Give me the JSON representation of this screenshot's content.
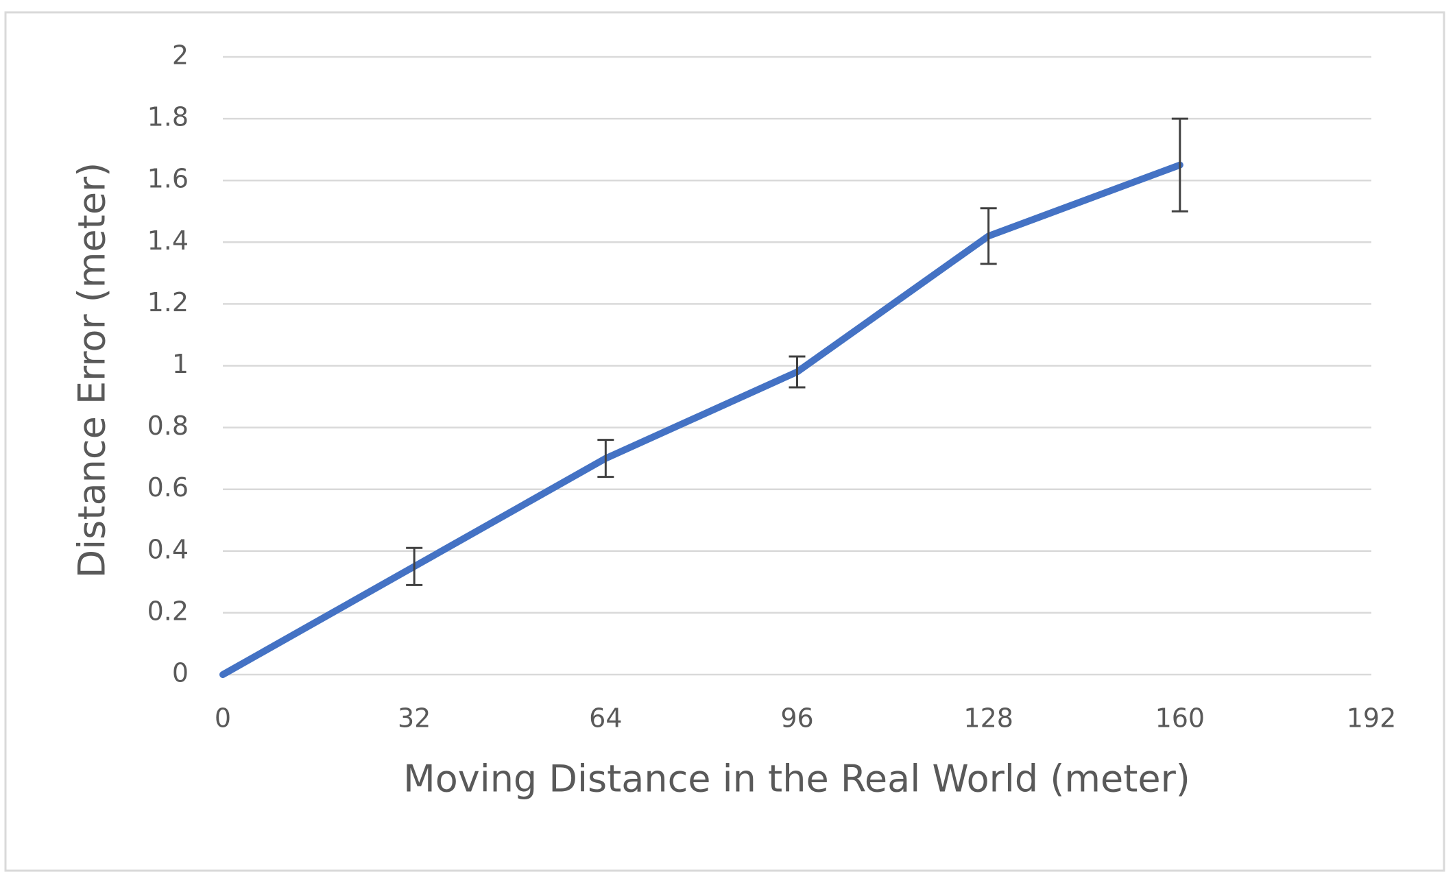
{
  "chart_data": {
    "type": "line",
    "x_label": "Moving Distance in the Real World (meter)",
    "y_label": "Distance Error (meter)",
    "x": [
      0,
      32,
      64,
      96,
      128,
      160
    ],
    "series": [
      {
        "color": "#4472c4",
        "values": [
          0,
          0.35,
          0.7,
          0.98,
          1.42,
          1.65
        ],
        "errors": [
          null,
          0.06,
          0.06,
          0.05,
          0.09,
          0.15
        ]
      }
    ],
    "xlim": [
      0,
      192
    ],
    "xticks": [
      0,
      32,
      64,
      96,
      128,
      160,
      192
    ],
    "ylim": [
      0,
      2
    ],
    "yticks": [
      0,
      0.2,
      0.4,
      0.6,
      0.8,
      1,
      1.2,
      1.4,
      1.6,
      1.8,
      2
    ],
    "grid": true
  }
}
